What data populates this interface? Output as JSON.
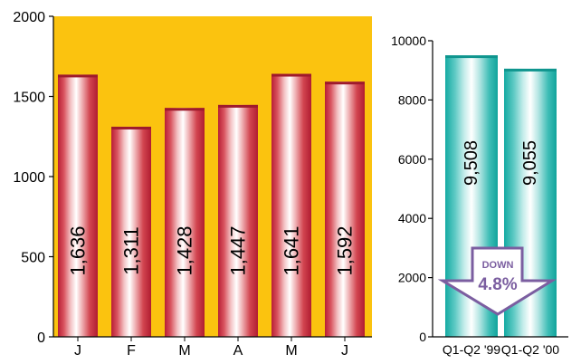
{
  "chart_data": [
    {
      "type": "bar",
      "categories": [
        "J",
        "F",
        "M",
        "A",
        "M",
        "J"
      ],
      "values": [
        1636,
        1311,
        1428,
        1447,
        1641,
        1592
      ],
      "value_labels": [
        "1,636",
        "1,311",
        "1,428",
        "1,447",
        "1,641",
        "1,592"
      ],
      "ylim": [
        0,
        2000
      ],
      "yticks": [
        0,
        500,
        1000,
        1500,
        2000
      ],
      "grid": false,
      "colors": {
        "background": "#fbc30f",
        "bar": "#c4283c",
        "bar_highlight": "#ffffff"
      }
    },
    {
      "type": "bar",
      "categories": [
        "Q1-Q2 '99",
        "Q1-Q2 '00"
      ],
      "values": [
        9508,
        9055
      ],
      "value_labels": [
        "9,508",
        "9,055"
      ],
      "ylim": [
        0,
        10000
      ],
      "yticks": [
        0,
        2000,
        4000,
        6000,
        8000,
        10000
      ],
      "grid": false,
      "colors": {
        "bar": "#1fb8b0",
        "bar_highlight": "#ffffff",
        "arrow": "#7b5ea0"
      },
      "annotation": {
        "line1": "DOWN",
        "line2": "4.8%"
      }
    }
  ]
}
